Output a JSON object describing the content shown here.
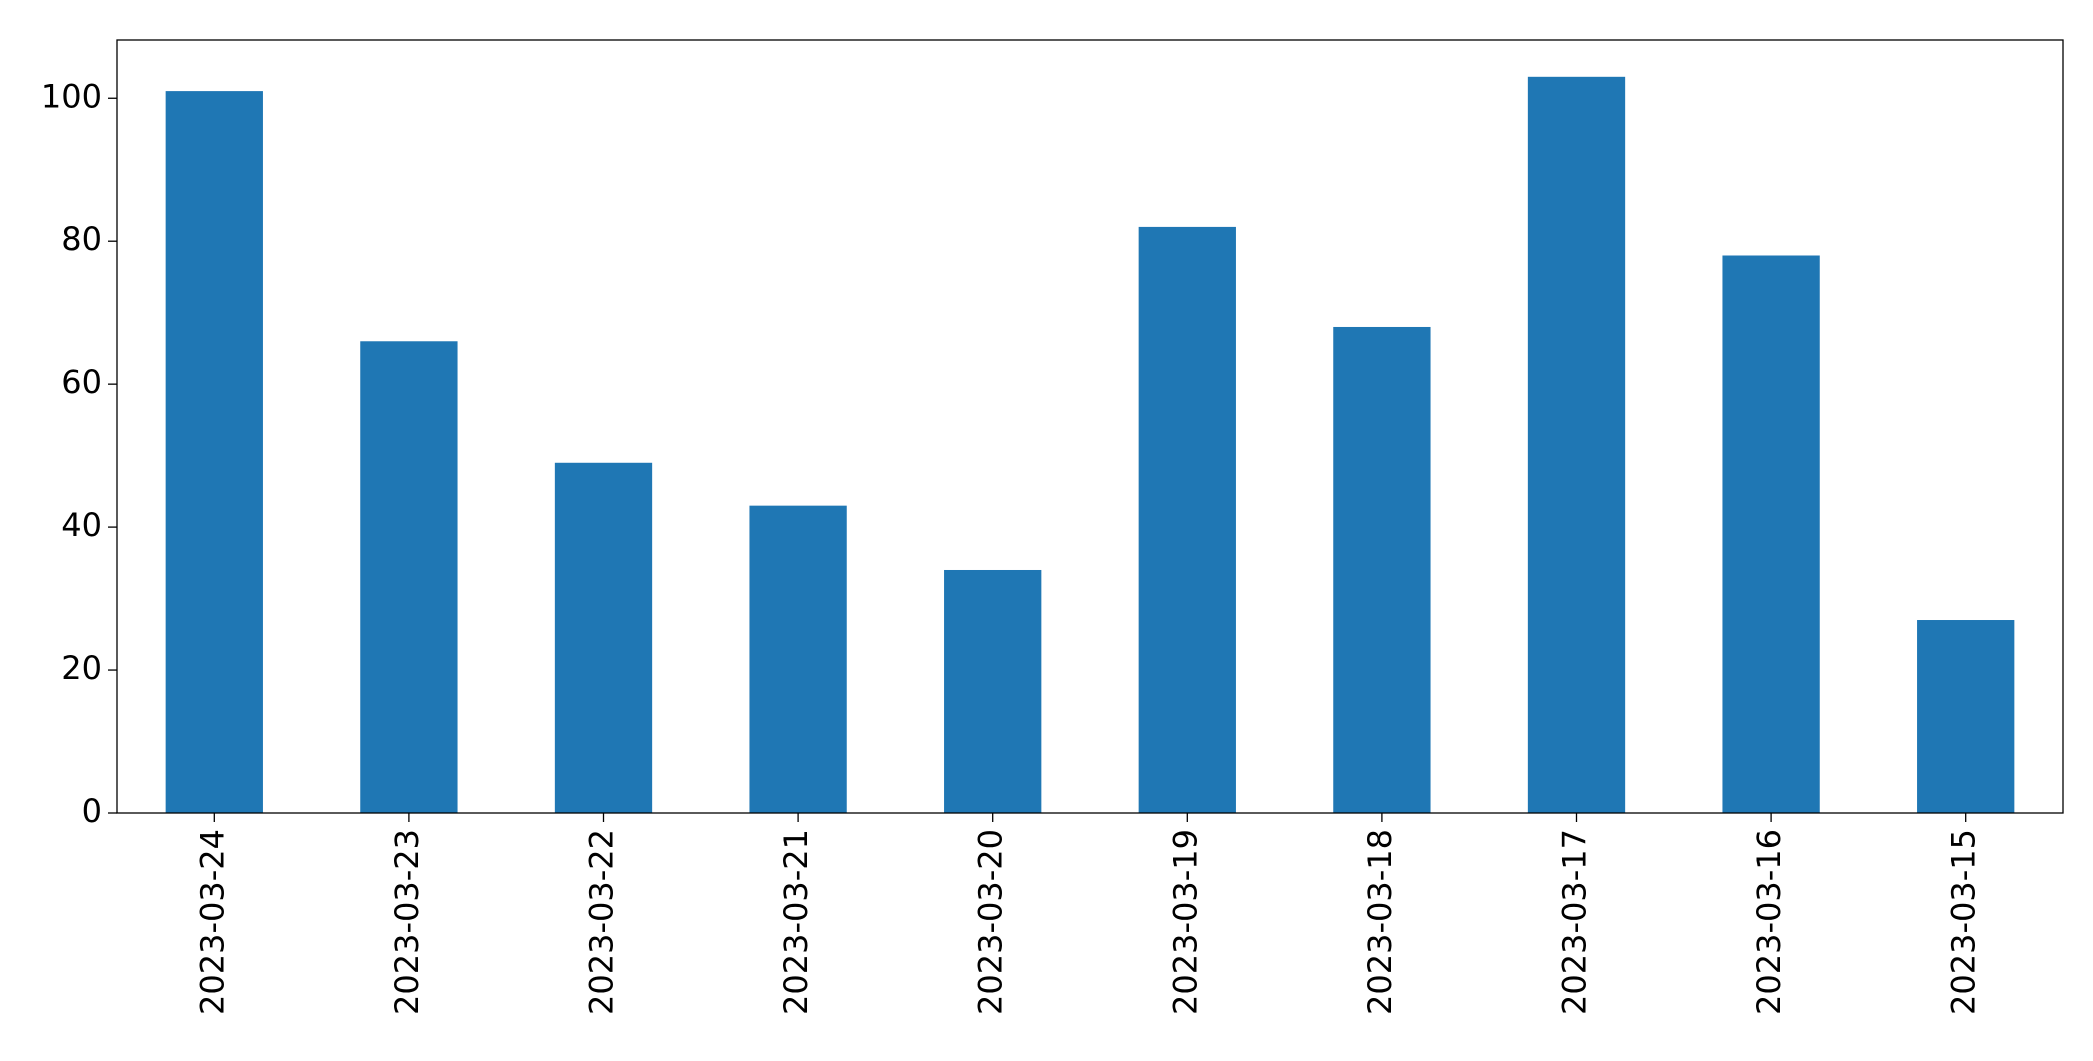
{
  "chart_data": {
    "type": "bar",
    "categories": [
      "2023-03-24",
      "2023-03-23",
      "2023-03-22",
      "2023-03-21",
      "2023-03-20",
      "2023-03-19",
      "2023-03-18",
      "2023-03-17",
      "2023-03-16",
      "2023-03-15"
    ],
    "values": [
      101,
      66,
      49,
      43,
      34,
      82,
      68,
      103,
      78,
      27
    ],
    "color": "#1f77b4",
    "ylim": [
      0,
      108.15
    ],
    "yticks": [
      0,
      20,
      40,
      60,
      80,
      100
    ],
    "grid": false
  }
}
